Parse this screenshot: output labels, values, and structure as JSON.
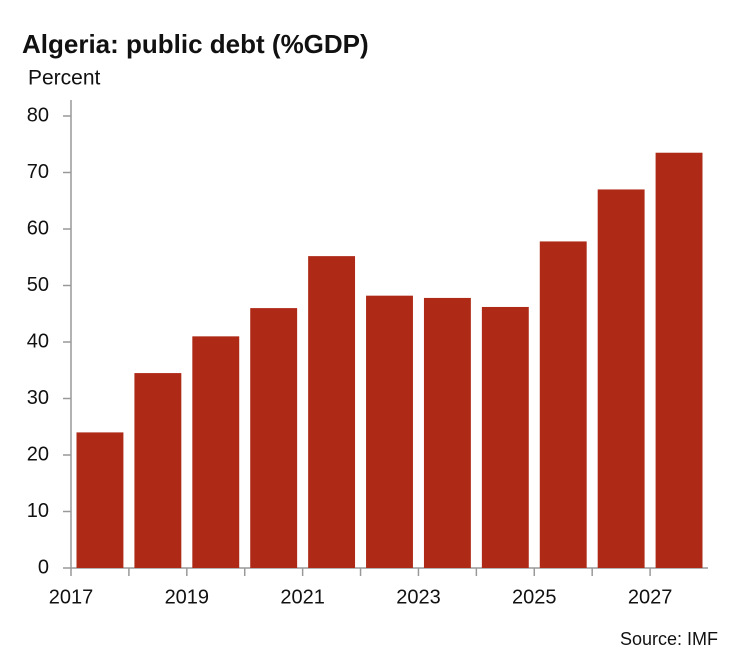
{
  "chart_data": {
    "type": "bar",
    "title": "Algeria: public debt (%GDP)",
    "y_label": "Percent",
    "source": "Source: IMF",
    "categories": [
      "2017",
      null,
      "2019",
      null,
      "2021",
      null,
      "2023",
      null,
      "2025",
      null,
      "2027"
    ],
    "values": [
      24,
      34.5,
      41,
      46,
      55.2,
      48.2,
      47.8,
      46.2,
      57.8,
      67,
      73.5
    ],
    "color": "#ae2a17",
    "ylim": [
      0,
      80
    ],
    "yticks": [
      0,
      10,
      20,
      30,
      40,
      50,
      60,
      70,
      80
    ],
    "grid": false
  }
}
